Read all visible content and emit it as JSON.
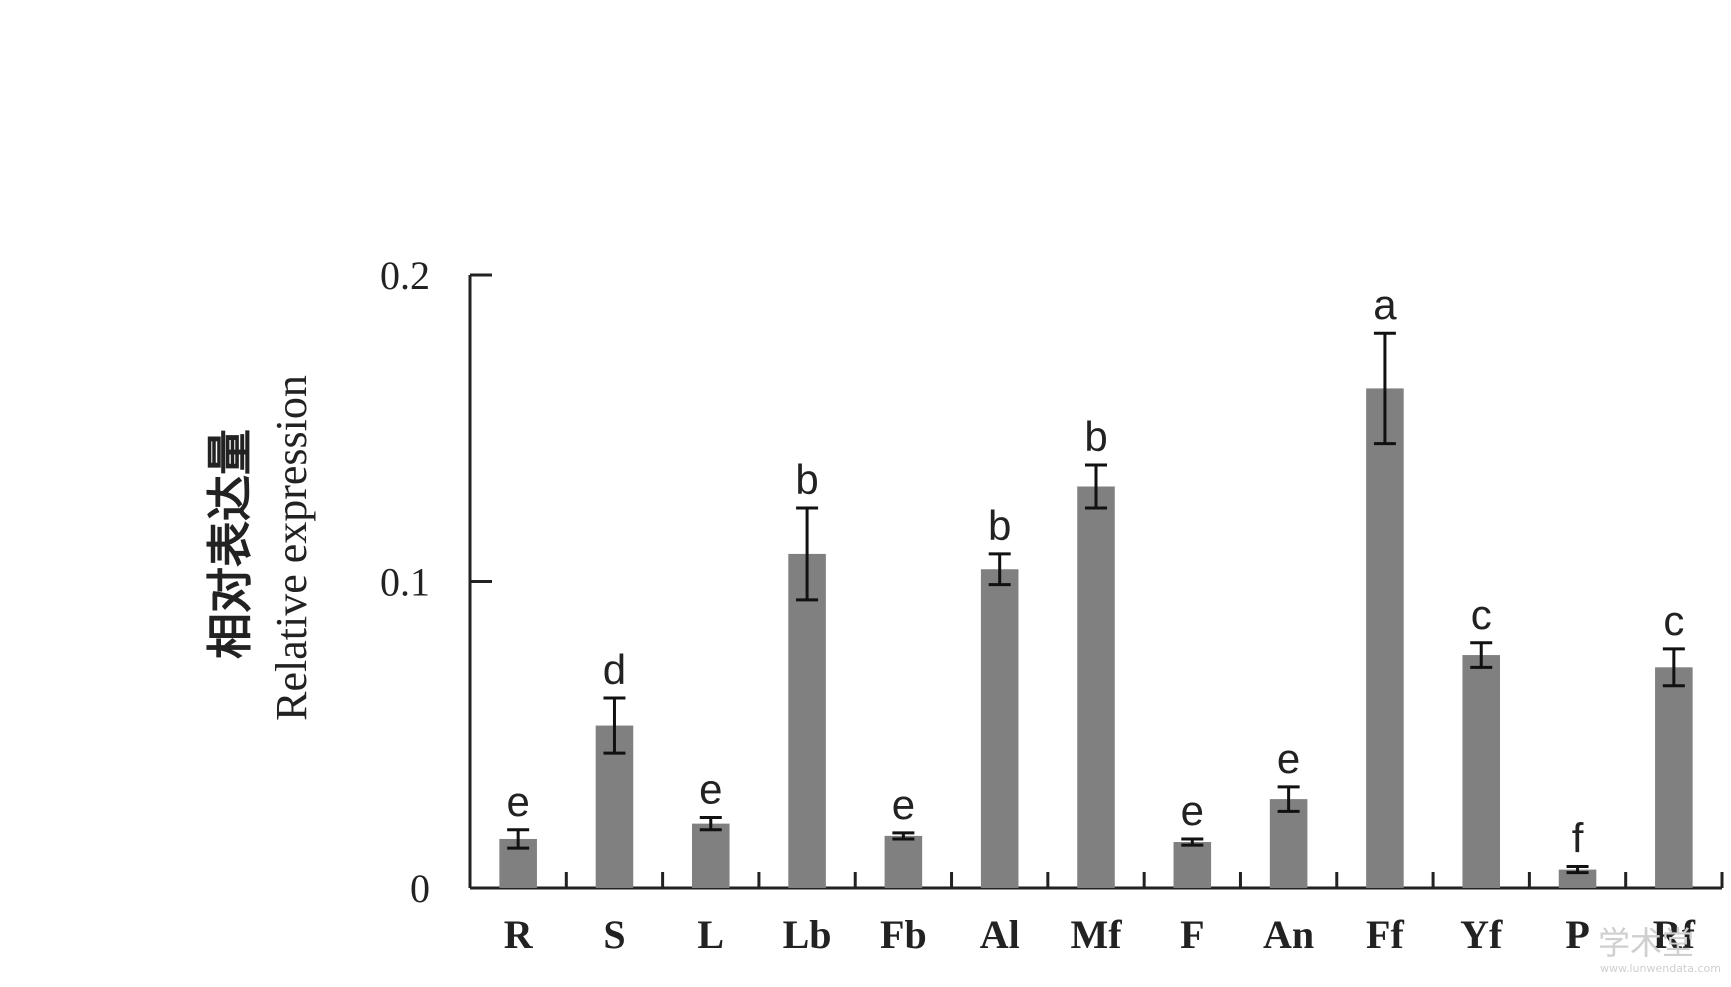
{
  "chart_data": {
    "type": "bar",
    "ylabel_cn": "相对表达量",
    "ylabel_en": "Relative expression",
    "xlabel": "",
    "ylim": [
      0,
      0.2
    ],
    "yticks": [
      0,
      0.1,
      0.2
    ],
    "ytick_labels": [
      "0",
      "0.1",
      "0.2"
    ],
    "categories": [
      "R",
      "S",
      "L",
      "Lb",
      "Fb",
      "Al",
      "Mf",
      "F",
      "An",
      "Ff",
      "Yf",
      "P",
      "Rf"
    ],
    "values": [
      0.016,
      0.053,
      0.021,
      0.109,
      0.017,
      0.104,
      0.131,
      0.015,
      0.029,
      0.163,
      0.076,
      0.006,
      0.072
    ],
    "errors": [
      0.003,
      0.009,
      0.002,
      0.015,
      0.001,
      0.005,
      0.007,
      0.001,
      0.004,
      0.018,
      0.004,
      0.001,
      0.006
    ],
    "significance": [
      "e",
      "d",
      "e",
      "b",
      "e",
      "b",
      "b",
      "e",
      "e",
      "a",
      "c",
      "f",
      "c"
    ],
    "bar_color": "#808080",
    "grid": false,
    "legend": "none"
  },
  "watermark": {
    "text": "学术堂",
    "url": "www.lunwendata.com"
  }
}
